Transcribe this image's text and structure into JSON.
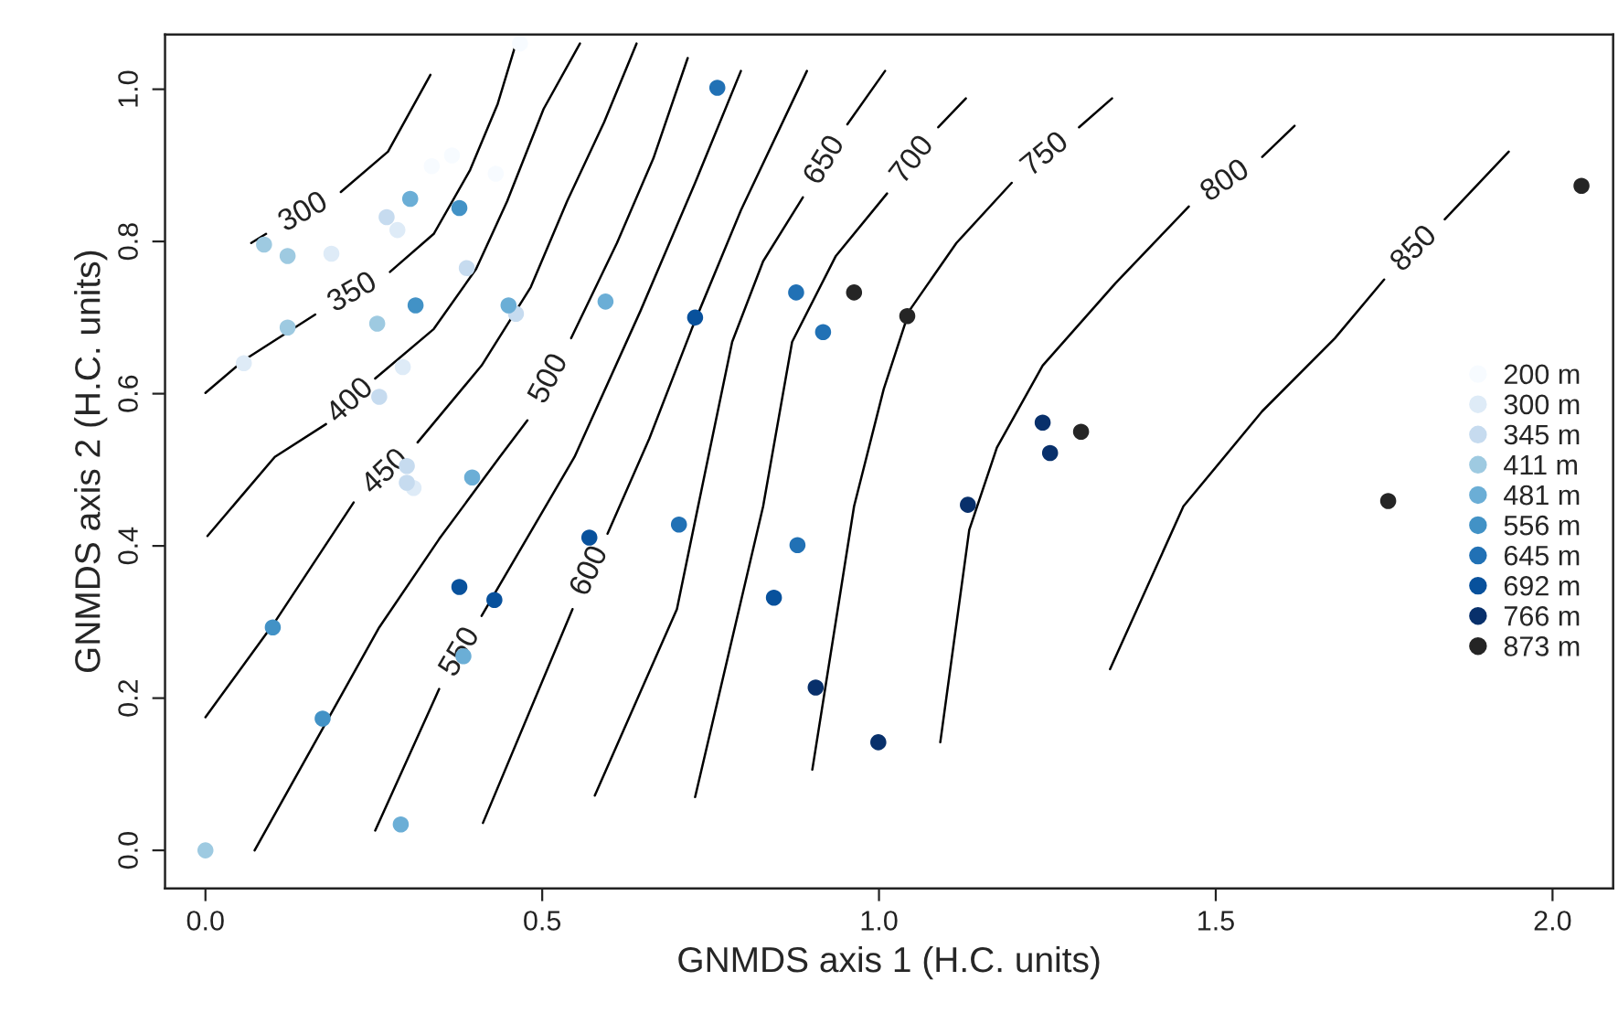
{
  "chart_data": {
    "type": "scatter",
    "xlabel": "GNMDS axis 1 (H.C. units)",
    "ylabel": "GNMDS axis 2 (H.C. units)",
    "xlim": [
      -0.06,
      2.09
    ],
    "ylim": [
      -0.05,
      1.072
    ],
    "xticks": [
      {
        "value": 0,
        "label": "0.0"
      },
      0.5,
      {
        "value": 1,
        "label": "1.0"
      },
      1.5,
      {
        "value": 2,
        "label": "2.0"
      }
    ],
    "yticks": [
      {
        "value": 0,
        "label": "0.0"
      },
      0.2,
      0.4,
      0.6,
      0.8,
      {
        "value": 1,
        "label": "1.0"
      }
    ],
    "grid": false,
    "legend": "right",
    "series": [
      {
        "type": "line",
        "name": "300",
        "color": "#000000",
        "x": [
          0.068,
          0.09,
          null,
          0.201,
          0.271,
          0.301,
          0.334
        ],
        "values": [
          0.798,
          0.81,
          null,
          0.865,
          0.918,
          0.966,
          1.019
        ]
      },
      {
        "type": "line",
        "name": "350",
        "color": "#000000",
        "x": [
          0.0,
          0.057,
          0.163,
          null,
          0.274,
          0.339,
          0.393,
          0.434,
          0.461
        ],
        "values": [
          0.601,
          0.644,
          0.704,
          null,
          0.76,
          0.81,
          0.894,
          0.981,
          1.06
        ]
      },
      {
        "type": "line",
        "name": "400",
        "color": "#000000",
        "x": [
          0.003,
          0.103,
          0.179,
          null,
          0.252,
          0.339,
          0.402,
          0.448,
          0.502,
          0.556
        ],
        "values": [
          0.413,
          0.517,
          0.56,
          null,
          0.62,
          0.685,
          0.764,
          0.853,
          0.974,
          1.06
        ]
      },
      {
        "type": "line",
        "name": "450",
        "color": "#000000",
        "x": [
          0.0,
          0.103,
          0.22,
          null,
          0.315,
          0.41,
          0.483,
          0.537,
          0.592,
          0.64
        ],
        "values": [
          0.175,
          0.3,
          0.457,
          null,
          0.536,
          0.637,
          0.74,
          0.853,
          0.957,
          1.06
        ]
      },
      {
        "type": "line",
        "name": "500",
        "color": "#000000",
        "x": [
          0.073,
          0.176,
          0.258,
          0.347,
          0.437,
          0.478,
          null,
          0.543,
          0.611,
          0.665,
          0.716
        ],
        "values": [
          0.0,
          0.163,
          0.293,
          0.409,
          0.517,
          0.565,
          null,
          0.673,
          0.798,
          0.909,
          1.041
        ]
      },
      {
        "type": "line",
        "name": "550",
        "color": "#000000",
        "x": [
          0.252,
          0.347,
          null,
          0.41,
          0.548,
          0.646,
          0.727,
          0.795
        ],
        "values": [
          0.026,
          0.212,
          null,
          0.308,
          0.517,
          0.709,
          0.877,
          1.024
        ]
      },
      {
        "type": "line",
        "name": "600",
        "color": "#000000",
        "x": [
          0.412,
          0.545,
          null,
          0.597,
          0.659,
          0.722,
          0.795,
          0.893
        ],
        "values": [
          0.036,
          0.317,
          null,
          0.416,
          0.541,
          0.685,
          0.841,
          1.024
        ]
      },
      {
        "type": "line",
        "name": "650",
        "color": "#000000",
        "x": [
          0.578,
          0.7,
          0.741,
          0.782,
          0.828,
          0.887,
          null,
          0.953,
          1.009
        ],
        "values": [
          0.072,
          0.317,
          0.493,
          0.668,
          0.774,
          0.858,
          null,
          0.954,
          1.024
        ]
      },
      {
        "type": "line",
        "name": "700",
        "color": "#000000",
        "x": [
          0.727,
          0.828,
          0.871,
          0.936,
          1.012,
          null,
          1.088,
          1.129
        ],
        "values": [
          0.07,
          0.452,
          0.668,
          0.781,
          0.863,
          null,
          0.95,
          0.988
        ]
      },
      {
        "type": "line",
        "name": "750",
        "color": "#000000",
        "x": [
          0.901,
          0.963,
          1.007,
          1.045,
          1.115,
          1.197,
          null,
          1.297,
          1.346
        ],
        "values": [
          0.106,
          0.452,
          0.606,
          0.709,
          0.798,
          0.877,
          null,
          0.95,
          0.988
        ]
      },
      {
        "type": "line",
        "name": "800",
        "color": "#000000",
        "x": [
          1.091,
          1.134,
          1.175,
          1.243,
          1.351,
          1.46,
          null,
          1.569,
          1.617
        ],
        "values": [
          0.142,
          0.421,
          0.529,
          0.637,
          0.745,
          0.846,
          null,
          0.911,
          0.952
        ]
      },
      {
        "type": "line",
        "name": "850",
        "color": "#000000",
        "x": [
          1.343,
          1.452,
          1.569,
          1.677,
          1.75,
          null,
          1.84,
          1.935
        ],
        "values": [
          0.238,
          0.452,
          0.577,
          0.673,
          0.75,
          null,
          0.829,
          0.918
        ]
      },
      {
        "marker": "circle",
        "name": "200 m",
        "color": "#f7fbff",
        "x": [
          0.467,
          0.336,
          0.366,
          0.431
        ],
        "values": [
          1.06,
          0.899,
          0.913,
          0.889
        ]
      },
      {
        "marker": "circle",
        "name": "300 m",
        "color": "#deebf7",
        "x": [
          0.285,
          0.187,
          0.057,
          0.293,
          0.309
        ],
        "values": [
          0.815,
          0.784,
          0.64,
          0.635,
          0.476
        ]
      },
      {
        "marker": "circle",
        "name": "345 m",
        "color": "#c6dbef",
        "x": [
          0.269,
          0.388,
          0.461,
          0.258,
          0.299,
          0.299
        ],
        "values": [
          0.832,
          0.765,
          0.705,
          0.596,
          0.505,
          0.483
        ]
      },
      {
        "marker": "circle",
        "name": "411 m",
        "color": "#9ecae1",
        "x": [
          0.087,
          0.122,
          0.122,
          0.255,
          0.0
        ],
        "values": [
          0.796,
          0.781,
          0.687,
          0.692,
          0.0
        ]
      },
      {
        "marker": "circle",
        "name": "481 m",
        "color": "#6baed6",
        "x": [
          0.304,
          0.45,
          0.594,
          0.396,
          0.383,
          0.29
        ],
        "values": [
          0.856,
          0.716,
          0.721,
          0.49,
          0.255,
          0.034
        ]
      },
      {
        "marker": "circle",
        "name": "556 m",
        "color": "#4292c6",
        "x": [
          0.377,
          0.312,
          0.1,
          0.174
        ],
        "values": [
          0.844,
          0.716,
          0.293,
          0.173
        ]
      },
      {
        "marker": "circle",
        "name": "645 m",
        "color": "#2171b5",
        "x": [
          0.76,
          0.877,
          0.917,
          0.703,
          0.879
        ],
        "values": [
          1.002,
          0.733,
          0.681,
          0.428,
          0.401
        ]
      },
      {
        "marker": "circle",
        "name": "692 m",
        "color": "#08519c",
        "x": [
          0.377,
          0.429,
          0.57,
          0.727,
          0.844
        ],
        "values": [
          0.346,
          0.329,
          0.411,
          0.7,
          0.332
        ]
      },
      {
        "marker": "circle",
        "name": "766 m",
        "color": "#08306b",
        "x": [
          1.243,
          1.254,
          1.132,
          0.906,
          0.999
        ],
        "values": [
          0.562,
          0.522,
          0.454,
          0.214,
          0.142
        ]
      },
      {
        "marker": "circle",
        "name": "873 m",
        "color": "#252525",
        "x": [
          0.963,
          1.042,
          1.3,
          2.043,
          1.756
        ],
        "values": [
          0.733,
          0.702,
          0.55,
          0.873,
          0.459
        ]
      }
    ]
  }
}
